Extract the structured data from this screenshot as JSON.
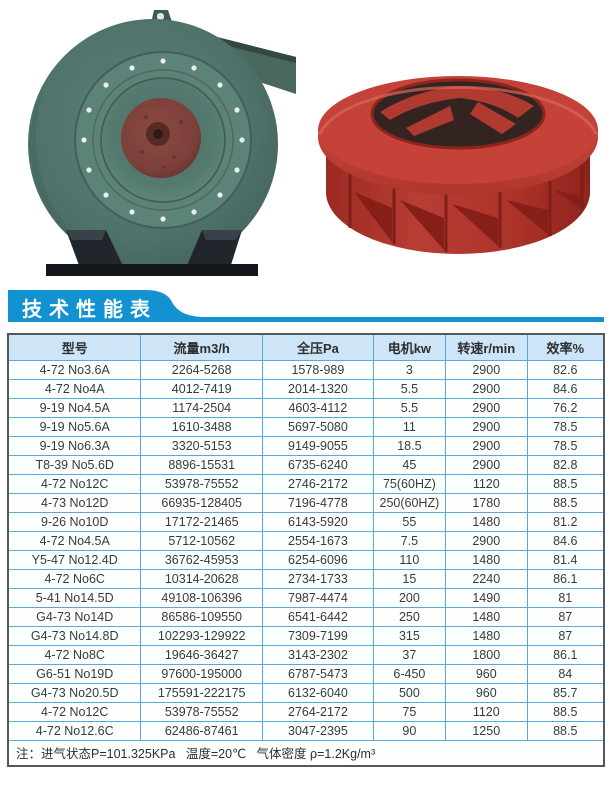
{
  "photos": {
    "fan": {
      "name": "green-centrifugal-fan-photo",
      "body_color": "#50746b",
      "body_dark": "#44635c",
      "inlet_color": "#5d8278",
      "hub_color": "#7c403a",
      "stand_color": "#20262b"
    },
    "impeller": {
      "name": "red-impeller-wheel-photo",
      "shroud_color": "#c44237",
      "drum_color": "#b2362c",
      "shadow_color": "#871f19",
      "opening_color": "#332421"
    }
  },
  "banner": {
    "title": "技术性能表",
    "bg_color": "#1392d2",
    "text_color": "#ffffff"
  },
  "table": {
    "headers": [
      "型号",
      "流量m3/h",
      "全压Pa",
      "电机kw",
      "转速r/min",
      "效率%"
    ],
    "rows": [
      [
        "4-72  No3.6A",
        "2264-5268",
        "1578-989",
        "3",
        "2900",
        "82.6"
      ],
      [
        "4-72  No4A",
        "4012-7419",
        "2014-1320",
        "5.5",
        "2900",
        "84.6"
      ],
      [
        "9-19  No4.5A",
        "1174-2504",
        "4603-4112",
        "5.5",
        "2900",
        "76.2"
      ],
      [
        "9-19  No5.6A",
        "1610-3488",
        "5697-5080",
        "11",
        "2900",
        "78.5"
      ],
      [
        "9-19  No6.3A",
        "3320-5153",
        "9149-9055",
        "18.5",
        "2900",
        "78.5"
      ],
      [
        "T8-39  No5.6D",
        "8896-15531",
        "6735-6240",
        "45",
        "2900",
        "82.8"
      ],
      [
        "4-72  No12C",
        "53978-75552",
        "2746-2172",
        "75(60HZ)",
        "1120",
        "88.5"
      ],
      [
        "4-73  No12D",
        "66935-128405",
        "7196-4778",
        "250(60HZ)",
        "1780",
        "88.5"
      ],
      [
        "9-26  No10D",
        "17172-21465",
        "6143-5920",
        "55",
        "1480",
        "81.2"
      ],
      [
        "4-72  No4.5A",
        "5712-10562",
        "2554-1673",
        "7.5",
        "2900",
        "84.6"
      ],
      [
        "Y5-47  No12.4D",
        "36762-45953",
        "6254-6096",
        "110",
        "1480",
        "81.4"
      ],
      [
        "4-72  No6C",
        "10314-20628",
        "2734-1733",
        "15",
        "2240",
        "86.1"
      ],
      [
        "5-41  No14.5D",
        "49108-106396",
        "7987-4474",
        "200",
        "1490",
        "81"
      ],
      [
        "G4-73  No14D",
        "86586-109550",
        "6541-6442",
        "250",
        "1480",
        "87"
      ],
      [
        "G4-73  No14.8D",
        "102293-129922",
        "7309-7199",
        "315",
        "1480",
        "87"
      ],
      [
        "4-72  No8C",
        "19646-36427",
        "3143-2302",
        "37",
        "1800",
        "86.1"
      ],
      [
        "G6-51  No19D",
        "97600-195000",
        "6787-5473",
        "6-450",
        "960",
        "84"
      ],
      [
        "G4-73  No20.5D",
        "175591-222175",
        "6132-6040",
        "500",
        "960",
        "85.7"
      ],
      [
        "4-72  No12C",
        "53978-75552",
        "2764-2172",
        "75",
        "1120",
        "88.5"
      ],
      [
        "4-72  No12.6C",
        "62486-87461",
        "3047-2395",
        "90",
        "1250",
        "88.5"
      ]
    ],
    "note": "注：进气状态P=101.325KPa   温度=20℃   气体密度 ρ=1.2Kg/m³",
    "header_bg": "#cde5f6",
    "inner_border_color": "#58a8dd",
    "outer_border_color": "#54575b"
  }
}
